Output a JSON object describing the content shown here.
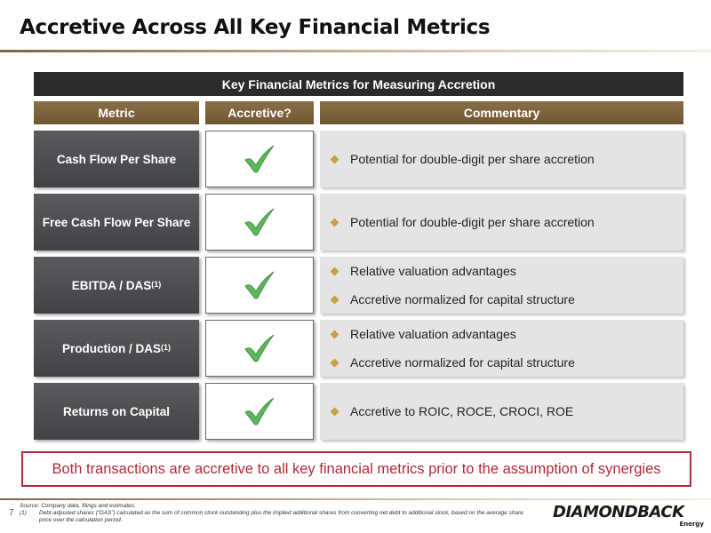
{
  "title": "Accretive Across All Key Financial Metrics",
  "banner": "Key Financial Metrics for Measuring Accretion",
  "headers": {
    "metric": "Metric",
    "accretive": "Accretive?",
    "commentary": "Commentary"
  },
  "rows": [
    {
      "metric": "Cash Flow Per Share",
      "sup": "",
      "accretive": true,
      "commentary": [
        "Potential for double-digit per share accretion"
      ]
    },
    {
      "metric": "Free Cash Flow Per Share",
      "sup": "",
      "accretive": true,
      "commentary": [
        "Potential for double-digit per share accretion"
      ]
    },
    {
      "metric": "EBITDA / DAS",
      "sup": "(1)",
      "accretive": true,
      "commentary": [
        "Relative valuation advantages",
        "Accretive normalized for capital structure"
      ]
    },
    {
      "metric": "Production / DAS",
      "sup": "(1)",
      "accretive": true,
      "commentary": [
        "Relative valuation advantages",
        "Accretive normalized for capital structure"
      ]
    },
    {
      "metric": "Returns on Capital",
      "sup": "",
      "accretive": true,
      "commentary": [
        "Accretive to ROIC, ROCE, CROCI, ROE"
      ]
    }
  ],
  "callout": "Both transactions are accretive to all key financial metrics prior to the assumption of synergies",
  "footer": {
    "page_number": "7",
    "source": "Source: Company data, filings and estimates.",
    "note_number": "(1)",
    "note_text": "Debt-adjusted shares (“DAS”) calculated as the sum of common stock outstanding plus the implied additional shares from converting net debt to additional stock, based on the average share price over the calculation period.",
    "logo_word": "DIAMONDBACK",
    "logo_sub": "Energy"
  },
  "colors": {
    "header_gold": "#7d6340",
    "metric_gray": "#4d4e50",
    "check_green": "#5cb85c",
    "callout_red": "#b22a3a",
    "bullet_gold": "#c8a040"
  },
  "icons": {
    "check": "checkmark-icon",
    "bullet": "diamond-bullet-icon"
  }
}
